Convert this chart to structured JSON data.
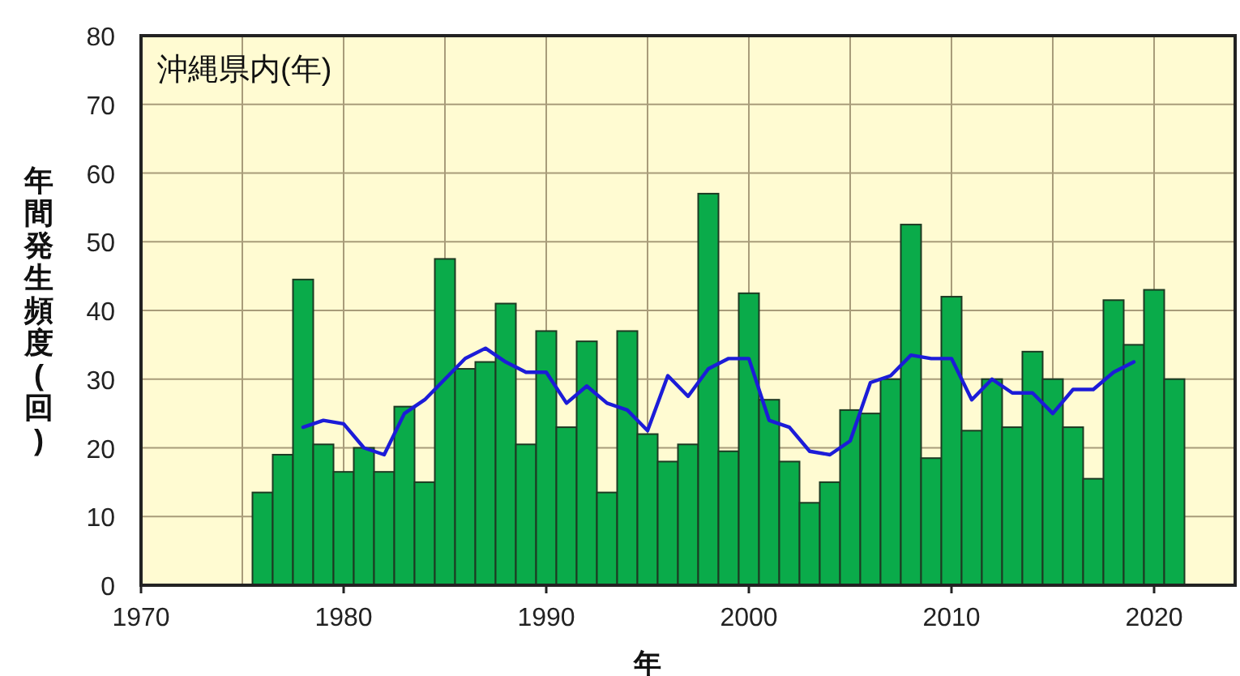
{
  "chart_data": {
    "type": "bar",
    "title": "沖縄県内(年)",
    "xlabel": "年",
    "ylabel": "年間発生頻度(回)",
    "xlim": [
      1970,
      2024
    ],
    "xticks": [
      1970,
      {
        "value": 1975,
        "label": null
      },
      1980,
      {
        "value": 1985,
        "label": null
      },
      1990,
      {
        "value": 1995,
        "label": null
      },
      2000,
      {
        "value": 2005,
        "label": null
      },
      2010,
      {
        "value": 2015,
        "label": null
      },
      2020
    ],
    "ylim": [
      0,
      80
    ],
    "yticks": [
      0,
      10,
      20,
      30,
      40,
      50,
      60,
      70,
      80
    ],
    "grid": true,
    "series": [
      {
        "color": "#0aab4a",
        "x": [
          1976,
          1977,
          1978,
          1979,
          1980,
          1981,
          1982,
          1983,
          1984,
          1985,
          1986,
          1987,
          1988,
          1989,
          1990,
          1991,
          1992,
          1993,
          1994,
          1995,
          1996,
          1997,
          1998,
          1999,
          2000,
          2001,
          2002,
          2003,
          2004,
          2005,
          2006,
          2007,
          2008,
          2009,
          2010,
          2011,
          2012,
          2013,
          2014,
          2015,
          2016,
          2017,
          2018,
          2019,
          2020,
          2021
        ],
        "values": [
          13.5,
          19,
          44.5,
          20.5,
          16.5,
          20,
          16.5,
          26,
          15,
          47.5,
          31.5,
          32.5,
          41,
          20.5,
          37,
          23,
          35.5,
          13.5,
          37,
          22,
          18,
          20.5,
          57,
          19.5,
          42.5,
          27,
          18,
          12,
          15,
          25.5,
          25,
          30,
          52.5,
          18.5,
          42,
          22.5,
          30,
          23,
          34,
          30,
          23,
          15.5,
          41.5,
          35,
          43,
          30
        ]
      },
      {
        "type": "line",
        "color": "#1c1cd8",
        "x": [
          1978,
          1979,
          1980,
          1981,
          1982,
          1983,
          1984,
          1985,
          1986,
          1987,
          1988,
          1989,
          1990,
          1991,
          1992,
          1993,
          1994,
          1995,
          1996,
          1997,
          1998,
          1999,
          2000,
          2001,
          2002,
          2003,
          2004,
          2005,
          2006,
          2007,
          2008,
          2009,
          2010,
          2011,
          2012,
          2013,
          2014,
          2015,
          2016,
          2017,
          2018,
          2019
        ],
        "values": [
          23,
          24,
          23.5,
          20,
          19,
          25,
          27,
          30,
          33,
          34.5,
          32.5,
          31,
          31,
          26.5,
          29,
          26.5,
          25.5,
          22.5,
          30.5,
          27.5,
          31.5,
          33,
          33,
          24,
          23,
          19.5,
          19,
          21,
          29.5,
          30.5,
          33.5,
          33,
          33,
          27,
          30,
          28,
          28,
          25,
          28.5,
          28.5,
          31,
          32.5
        ]
      }
    ]
  }
}
